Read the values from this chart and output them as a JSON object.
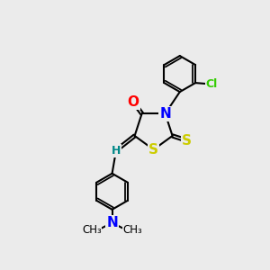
{
  "background_color": "#ebebeb",
  "bond_color": "#000000",
  "bond_width": 1.5,
  "atom_colors": {
    "O": "#ff0000",
    "N": "#0000ff",
    "S": "#cccc00",
    "Cl": "#33cc00",
    "H": "#008888"
  },
  "font_size_atom": 11,
  "font_size_small": 9,
  "xlim": [
    0,
    10
  ],
  "ylim": [
    0,
    10
  ]
}
